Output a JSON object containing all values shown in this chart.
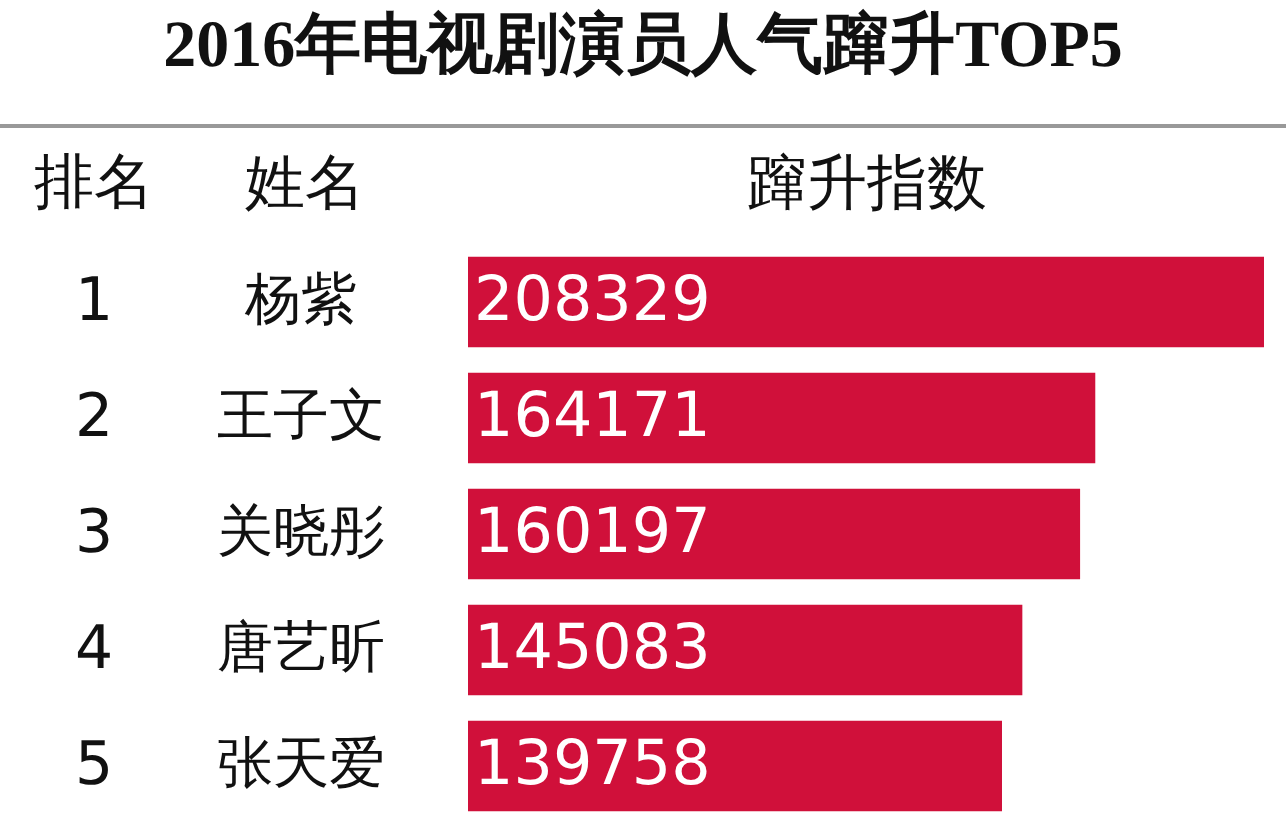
{
  "chart_data": {
    "type": "bar",
    "orientation": "horizontal",
    "title": "2016年电视剧演员人气蹿升TOP5",
    "ylabel": "姓名",
    "xlabel": "蹿升指数",
    "categories": [
      "杨紫",
      "王子文",
      "关晓彤",
      "唐艺昕",
      "张天爱"
    ],
    "values": [
      208329,
      164171,
      160197,
      145083,
      139758
    ],
    "color": "#d0103a",
    "data_labels": true,
    "tick_labels": "y",
    "annotations": [
      "排名",
      "1",
      "2",
      "3",
      "4",
      "5"
    ]
  }
}
